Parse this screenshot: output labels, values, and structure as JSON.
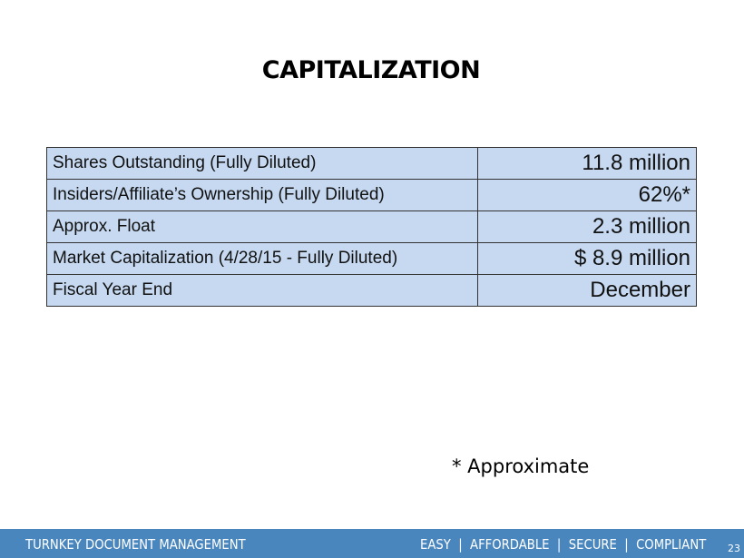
{
  "title": "CAPITALIZATION",
  "table": {
    "rows": [
      {
        "label": "Shares Outstanding (Fully Diluted)",
        "value": "11.8 million"
      },
      {
        "label": "Insiders/Affiliate’s Ownership (Fully Diluted)",
        "value": "62%*"
      },
      {
        "label": "Approx. Float",
        "value": "2.3 million"
      },
      {
        "label": "Market Capitalization (4/28/15 - Fully Diluted)",
        "value": "$ 8.9 million"
      },
      {
        "label": "Fiscal Year End",
        "value": "December"
      }
    ]
  },
  "note": "* Approximate",
  "footer": {
    "left": "TURNKEY DOCUMENT MANAGEMENT",
    "right": "EASY  |  AFFORDABLE  |  SECURE  |  COMPLIANT",
    "page_number": "23"
  },
  "colors": {
    "cell_background": "#c6d9f1",
    "footer_background": "#4a86be"
  }
}
